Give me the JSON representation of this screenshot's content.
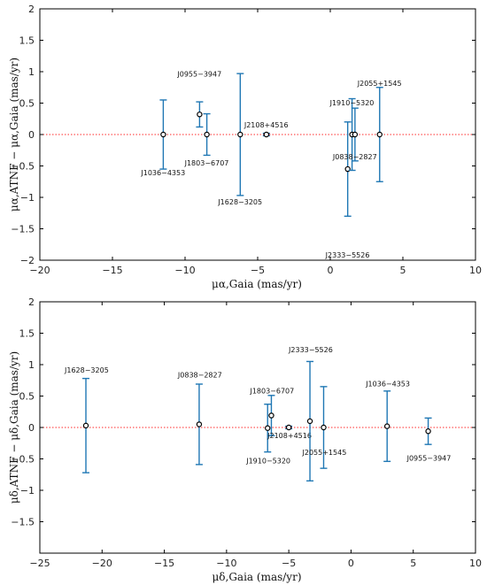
{
  "colors": {
    "errorbar": "#1f77b4",
    "zero_line": "#ff2a2a",
    "marker_fill": "#ffffff",
    "marker_edge": "#000000",
    "frame": "#000000"
  },
  "chart_data": [
    {
      "type": "scatter",
      "xlabel": "μα,Gaia (mas/yr)",
      "ylabel": "μα,ATNF − μα,Gaia (mas/yr)",
      "xlim": [
        -20,
        10
      ],
      "ylim": [
        -2,
        2
      ],
      "xticks": [
        -20,
        -15,
        -10,
        -5,
        0,
        5,
        10
      ],
      "yticks": [
        -2,
        -1.5,
        -1,
        -0.5,
        0,
        0.5,
        1,
        1.5,
        2
      ],
      "xtick_labels": [
        "−20",
        "−15",
        "−10",
        "−5",
        "0",
        "5",
        "10"
      ],
      "ytick_labels": [
        "−2",
        "−1.5",
        "−1",
        "−0.5",
        "0",
        "0.5",
        "1",
        "1.5",
        "2"
      ],
      "zero_line": "dotted",
      "grid": false,
      "points": [
        {
          "label": "J1036−4353",
          "x": -11.5,
          "y": 0.0,
          "yerr": 0.55
        },
        {
          "label": "J0955−3947",
          "x": -9.0,
          "y": 0.32,
          "yerr": 0.2
        },
        {
          "label": "J1803−6707",
          "x": -8.5,
          "y": 0.0,
          "yerr": 0.33
        },
        {
          "label": "J1628−3205",
          "x": -6.2,
          "y": 0.0,
          "yerr": 0.97
        },
        {
          "label": "J2108+4516",
          "x": -4.4,
          "y": 0.0,
          "yerr": 0.02
        },
        {
          "label": "J2333−5526",
          "x": 1.2,
          "y": -0.55,
          "yerr": 0.75
        },
        {
          "label": "J1910−5320",
          "x": 1.5,
          "y": 0.0,
          "yerr": 0.57
        },
        {
          "label": "J0838−2827",
          "x": 1.7,
          "y": 0.0,
          "yerr": 0.42
        },
        {
          "label": "J2055+1545",
          "x": 3.4,
          "y": 0.0,
          "yerr": 0.75
        }
      ]
    },
    {
      "type": "scatter",
      "xlabel": "μδ,Gaia (mas/yr)",
      "ylabel": "μδ,ATNF − μδ,Gaia (mas/yr)",
      "xlim": [
        -25,
        10
      ],
      "ylim": [
        -2,
        2
      ],
      "xticks": [
        -25,
        -20,
        -15,
        -10,
        -5,
        0,
        5,
        10
      ],
      "yticks": [
        -1.5,
        -1,
        -0.5,
        0,
        0.5,
        1,
        1.5,
        2
      ],
      "xtick_labels": [
        "−25",
        "−20",
        "−15",
        "−10",
        "−5",
        "0",
        "5",
        "10"
      ],
      "ytick_labels": [
        "−1.5",
        "−1",
        "−0.5",
        "0",
        "0.5",
        "1",
        "1.5",
        "2"
      ],
      "zero_line": "dotted",
      "grid": false,
      "points": [
        {
          "label": "J1628−3205",
          "x": -21.3,
          "y": 0.03,
          "yerr": 0.75
        },
        {
          "label": "J0838−2827",
          "x": -12.2,
          "y": 0.05,
          "yerr": 0.64
        },
        {
          "label": "J1803−6707",
          "x": -6.4,
          "y": 0.19,
          "yerr": 0.32
        },
        {
          "label": "J1910−5320",
          "x": -6.7,
          "y": -0.01,
          "yerr": 0.38
        },
        {
          "label": "J2108+4516",
          "x": -5.0,
          "y": 0.0,
          "yerr": 0.02
        },
        {
          "label": "J2333−5526",
          "x": -3.3,
          "y": 0.1,
          "yerr": 0.95
        },
        {
          "label": "J2055+1545",
          "x": -2.2,
          "y": 0.0,
          "yerr": 0.65
        },
        {
          "label": "J1036−4353",
          "x": 2.9,
          "y": 0.02,
          "yerr": 0.56
        },
        {
          "label": "J0955−3947",
          "x": 6.2,
          "y": -0.06,
          "yerr": 0.21
        }
      ]
    }
  ]
}
